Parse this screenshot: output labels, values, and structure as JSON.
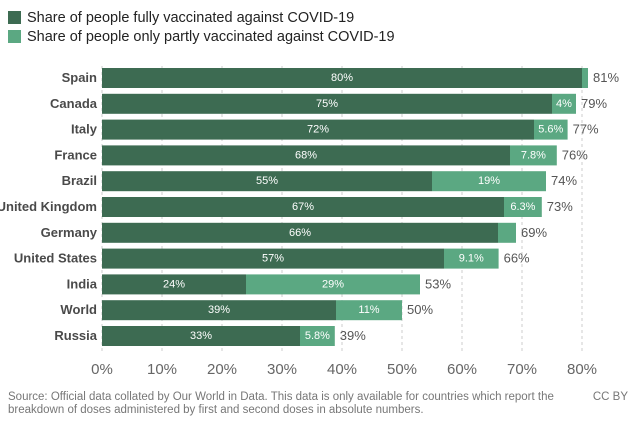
{
  "legend": {
    "full_label": "Share of people fully vaccinated against COVID-19",
    "partial_label": "Share of people only partly vaccinated against COVID-19"
  },
  "colors": {
    "full": "#3d6b52",
    "partial": "#5ba882",
    "grid": "#cccccc"
  },
  "chart_data": {
    "type": "bar",
    "orientation": "horizontal",
    "stacked": true,
    "categories": [
      "Spain",
      "Canada",
      "Italy",
      "France",
      "Brazil",
      "United Kingdom",
      "Germany",
      "United States",
      "India",
      "World",
      "Russia"
    ],
    "series": [
      {
        "name": "Share of people fully vaccinated against COVID-19",
        "values": [
          80,
          75,
          72,
          68,
          55,
          67,
          66,
          57,
          24,
          39,
          33
        ],
        "labels": [
          "80%",
          "75%",
          "72%",
          "68%",
          "55%",
          "67%",
          "66%",
          "57%",
          "24%",
          "39%",
          "33%"
        ]
      },
      {
        "name": "Share of people only partly vaccinated against COVID-19",
        "values": [
          1,
          4,
          5.6,
          7.8,
          19,
          6.3,
          3,
          9.1,
          29,
          11,
          5.8
        ],
        "labels": [
          "",
          "4%",
          "5.6%",
          "7.8%",
          "19%",
          "6.3%",
          "",
          "9.1%",
          "29%",
          "11%",
          "5.8%"
        ]
      }
    ],
    "totals": [
      "81%",
      "79%",
      "77%",
      "76%",
      "74%",
      "73%",
      "69%",
      "66%",
      "53%",
      "50%",
      "39%"
    ],
    "xlim": [
      0,
      80
    ],
    "xticks": [
      "0%",
      "10%",
      "20%",
      "30%",
      "40%",
      "50%",
      "60%",
      "70%",
      "80%"
    ],
    "grid": true
  },
  "footer": {
    "source": "Source: Official data collated by Our World in Data. This data is only available for countries which report the breakdown of doses administered by first and second doses in absolute numbers.",
    "license": "CC BY"
  }
}
